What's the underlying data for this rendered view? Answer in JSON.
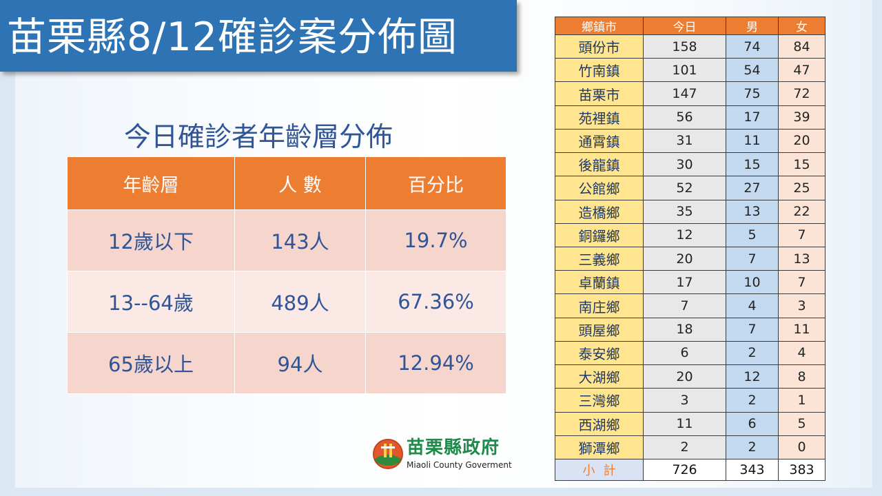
{
  "title": "苗栗縣8/12確診案分佈圖",
  "age_table": {
    "title": "今日確診者年齡層分佈",
    "headers": [
      "年齡層",
      "人 數",
      "百分比"
    ],
    "rows": [
      {
        "group": "12歲以下",
        "count": "143人",
        "percent": "19.7%"
      },
      {
        "group": "13--64歲",
        "count": "489人",
        "percent": "67.36%"
      },
      {
        "group": "65歲以上",
        "count": "94人",
        "percent": "12.94%"
      }
    ]
  },
  "town_table": {
    "headers": [
      "鄉鎮市",
      "今日",
      "男",
      "女"
    ],
    "rows": [
      {
        "name": "頭份市",
        "today": "158",
        "male": "74",
        "female": "84"
      },
      {
        "name": "竹南鎮",
        "today": "101",
        "male": "54",
        "female": "47"
      },
      {
        "name": "苗栗市",
        "today": "147",
        "male": "75",
        "female": "72"
      },
      {
        "name": "苑裡鎮",
        "today": "56",
        "male": "17",
        "female": "39"
      },
      {
        "name": "通霄鎮",
        "today": "31",
        "male": "11",
        "female": "20"
      },
      {
        "name": "後龍鎮",
        "today": "30",
        "male": "15",
        "female": "15"
      },
      {
        "name": "公館鄉",
        "today": "52",
        "male": "27",
        "female": "25"
      },
      {
        "name": "造橋鄉",
        "today": "35",
        "male": "13",
        "female": "22"
      },
      {
        "name": "銅鑼鄉",
        "today": "12",
        "male": "5",
        "female": "7"
      },
      {
        "name": "三義鄉",
        "today": "20",
        "male": "7",
        "female": "13"
      },
      {
        "name": "卓蘭鎮",
        "today": "17",
        "male": "10",
        "female": "7"
      },
      {
        "name": "南庄鄉",
        "today": "7",
        "male": "4",
        "female": "3"
      },
      {
        "name": "頭屋鄉",
        "today": "18",
        "male": "7",
        "female": "11"
      },
      {
        "name": "泰安鄉",
        "today": "6",
        "male": "2",
        "female": "4"
      },
      {
        "name": "大湖鄉",
        "today": "20",
        "male": "12",
        "female": "8"
      },
      {
        "name": "三灣鄉",
        "today": "3",
        "male": "2",
        "female": "1"
      },
      {
        "name": "西湖鄉",
        "today": "11",
        "male": "6",
        "female": "5"
      },
      {
        "name": "獅潭鄉",
        "today": "2",
        "male": "2",
        "female": "0"
      }
    ],
    "total": {
      "label": "小計",
      "today": "726",
      "male": "343",
      "female": "383"
    }
  },
  "logo": {
    "name_cn": "苗栗縣政府",
    "name_en": "Miaoli County Goverment",
    "icon": "county-emblem-icon"
  },
  "colors": {
    "banner": "#2e74b5",
    "header_orange": "#ed7d31",
    "text_blue": "#2f5597",
    "name_yellow": "#ffe58f",
    "male_blue": "#c2d9ef",
    "female_peach": "#fbe4d6"
  }
}
